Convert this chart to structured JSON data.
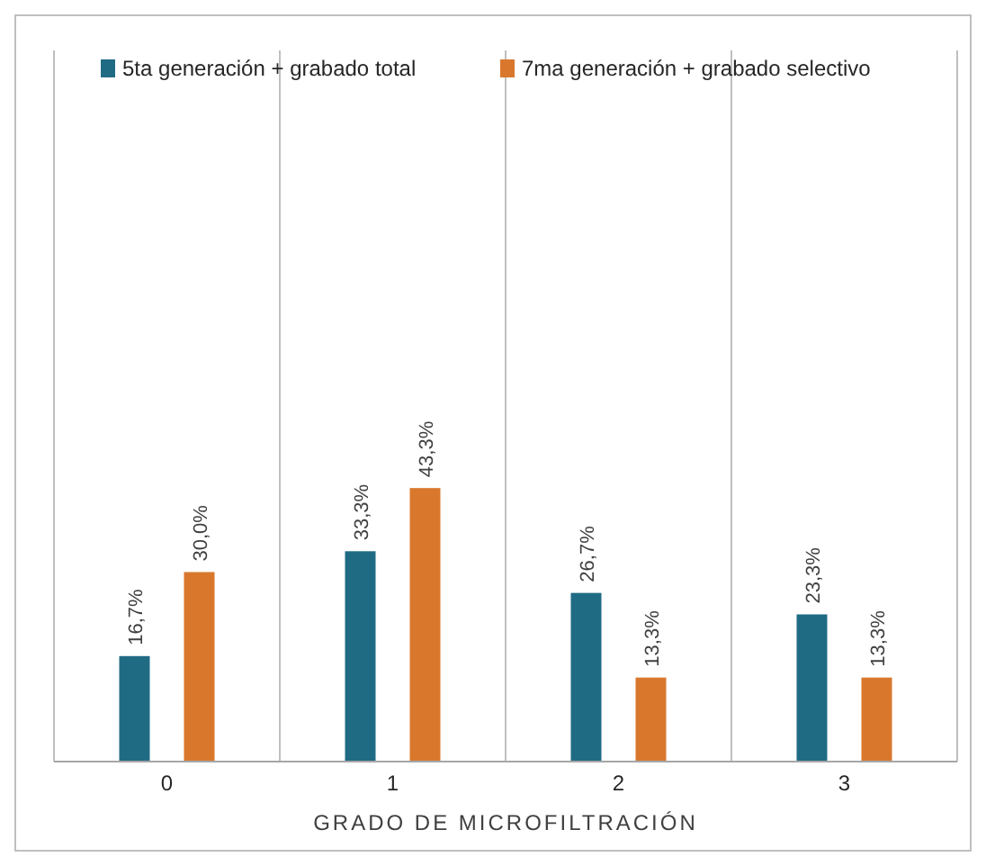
{
  "chart_data": {
    "type": "bar",
    "xlabel": "GRADO DE MICROFILTRACIÓN",
    "categories": [
      "0",
      "1",
      "2",
      "3"
    ],
    "series": [
      {
        "name": "5ta generación + grabado total",
        "color": "#1f6b84",
        "values": [
          16.7,
          33.3,
          26.7,
          23.3
        ],
        "value_labels": [
          "16,7%",
          "33,3%",
          "26,7%",
          "23,3%"
        ]
      },
      {
        "name": "7ma generación + grabado selectivo",
        "color": "#d9782d",
        "values": [
          30.0,
          43.3,
          13.3,
          13.3
        ],
        "value_labels": [
          "30,0%",
          "43,3%",
          "13,3%",
          "13,3%"
        ]
      }
    ],
    "grid": "x",
    "legend": "top"
  }
}
